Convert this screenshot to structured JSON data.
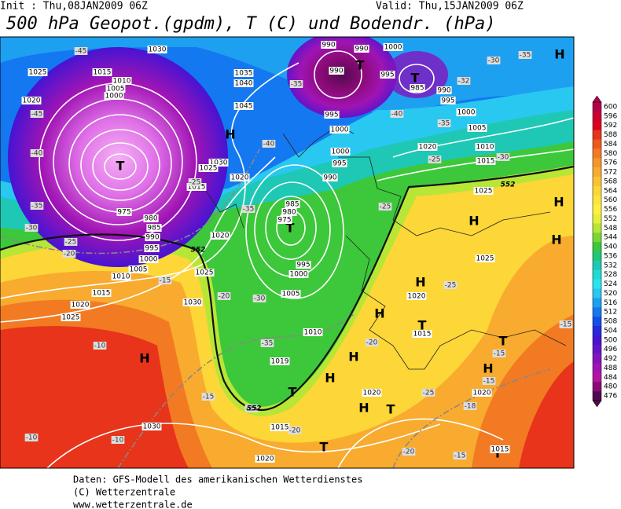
{
  "header": {
    "init": "Init : Thu,08JAN2009 06Z",
    "valid": "Valid: Thu,15JAN2009 06Z",
    "title": "500 hPa Geopot.(gpdm), T (C) und Bodendr. (hPa)"
  },
  "legend": {
    "items": [
      {
        "label": 600,
        "color": "#b4004b"
      },
      {
        "label": 596,
        "color": "#cc0033"
      },
      {
        "label": 592,
        "color": "#e00020"
      },
      {
        "label": 588,
        "color": "#e8341a"
      },
      {
        "label": 584,
        "color": "#ee5a1e"
      },
      {
        "label": 580,
        "color": "#f27a22"
      },
      {
        "label": 576,
        "color": "#f59628"
      },
      {
        "label": 572,
        "color": "#f8ab2e"
      },
      {
        "label": 568,
        "color": "#fbc232"
      },
      {
        "label": 564,
        "color": "#fdd638"
      },
      {
        "label": 560,
        "color": "#fee43c"
      },
      {
        "label": 556,
        "color": "#fff040"
      },
      {
        "label": 552,
        "color": "#e6f03c"
      },
      {
        "label": 548,
        "color": "#b8e636"
      },
      {
        "label": 544,
        "color": "#7cd632"
      },
      {
        "label": 540,
        "color": "#3cc83a"
      },
      {
        "label": 536,
        "color": "#1ec878"
      },
      {
        "label": 532,
        "color": "#1ec8b4"
      },
      {
        "label": 528,
        "color": "#1edcd2"
      },
      {
        "label": 524,
        "color": "#28e6f0"
      },
      {
        "label": 520,
        "color": "#28c8f0"
      },
      {
        "label": 516,
        "color": "#1ea0f0"
      },
      {
        "label": 512,
        "color": "#1478f0"
      },
      {
        "label": 508,
        "color": "#1450e6"
      },
      {
        "label": 504,
        "color": "#2828dc"
      },
      {
        "label": 500,
        "color": "#4614d2"
      },
      {
        "label": 496,
        "color": "#6414c8"
      },
      {
        "label": 492,
        "color": "#8214be"
      },
      {
        "label": 488,
        "color": "#a014b4"
      },
      {
        "label": 484,
        "color": "#b414a0"
      },
      {
        "label": 480,
        "color": "#8c0a78"
      },
      {
        "label": 476,
        "color": "#500a50"
      }
    ]
  },
  "map": {
    "pressure_centers": [
      "H",
      "H",
      "H",
      "H",
      "H",
      "H",
      "H",
      "H",
      "H",
      "H",
      "H",
      "H",
      "T",
      "T",
      "T",
      "T",
      "T",
      "T",
      "T",
      "T",
      "T",
      "T"
    ],
    "isobar_labels": [
      "1030",
      "1025",
      "1015",
      "1020",
      "1045",
      "1040",
      "1035",
      "1030",
      "1025",
      "1020",
      "1015",
      "975",
      "980",
      "985",
      "990",
      "995",
      "1000",
      "1005",
      "1010",
      "1015",
      "1020",
      "1025",
      "1030",
      "1025",
      "1020",
      "985",
      "980",
      "975",
      "995",
      "1000",
      "1005",
      "1010",
      "1015",
      "1020",
      "1030",
      "1019",
      "1020",
      "1020",
      "1025",
      "1025",
      "1020",
      "1015",
      "1020",
      "1010",
      "1015",
      "1005",
      "1000",
      "995",
      "990",
      "985",
      "990",
      "990",
      "990",
      "1000",
      "995",
      "995",
      "1000",
      "1000",
      "995",
      "990",
      "1015",
      "1010",
      "1005",
      "1000"
    ],
    "temperature_labels": [
      "-45",
      "-45",
      "-40",
      "-35",
      "-30",
      "-25",
      "-20",
      "-15",
      "-10",
      "-10",
      "-10",
      "-15",
      "-20",
      "-25",
      "-30",
      "-35",
      "-35",
      "-40",
      "-35",
      "-40",
      "-35",
      "-30",
      "-35",
      "-32",
      "-30",
      "-25",
      "-25",
      "-25",
      "-20",
      "-25",
      "-18",
      "-20",
      "-15",
      "-15",
      "-15",
      "-15",
      "-20",
      "-25"
    ],
    "contour_labels": [
      "552",
      "552",
      "552"
    ]
  },
  "footer": {
    "lines": [
      "Daten: GFS-Modell des amerikanischen Wetterdienstes",
      "(C) Wetterzentrale",
      "www.wetterzentrale.de"
    ]
  }
}
